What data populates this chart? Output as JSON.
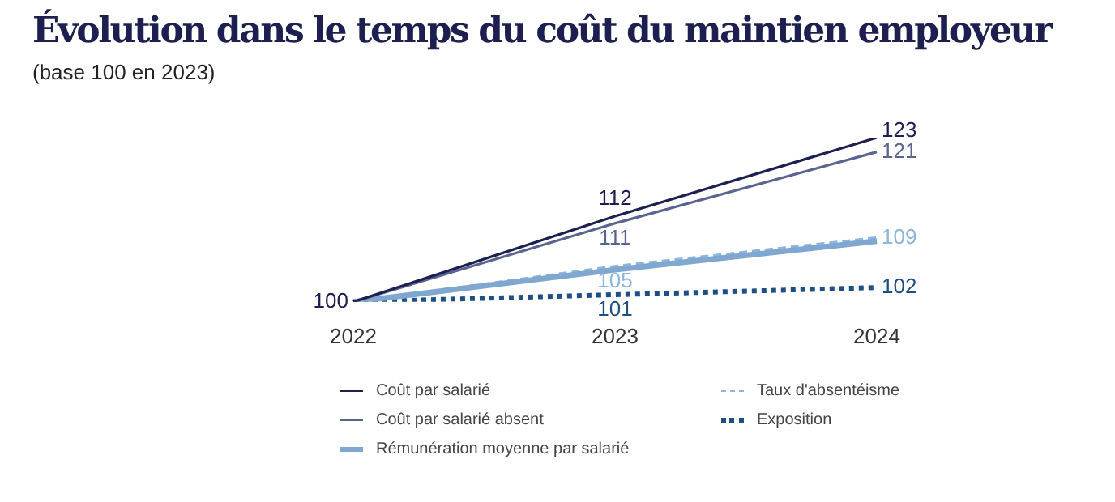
{
  "chart_data": {
    "type": "line",
    "title": "Évolution dans le temps du coût du maintien employeur",
    "subtitle": "(base 100 en 2023)",
    "categories": [
      "2022",
      "2023",
      "2024"
    ],
    "series": [
      {
        "name": "Coût par salarié",
        "color": "#1c1f4f",
        "values": [
          100,
          112,
          123
        ],
        "value_labels": [
          "100",
          "112",
          "123"
        ]
      },
      {
        "name": "Coût par salarié absent",
        "color": "#5a6490",
        "values": [
          100,
          111,
          121
        ],
        "value_labels": [
          null,
          "111",
          "121"
        ]
      },
      {
        "name": "Rémunération moyenne par salarié",
        "color": "#7fa7cf",
        "values": [
          100,
          104.5,
          108.5
        ]
      },
      {
        "name": "Taux d'absentéisme",
        "color": "#8db6dc",
        "values": [
          100,
          105,
          109
        ],
        "value_labels": [
          null,
          "105",
          "109"
        ],
        "line_style": "dashed"
      },
      {
        "name": "Exposition",
        "color": "#1d4f86",
        "values": [
          100,
          101,
          102
        ],
        "value_labels": [
          null,
          "101",
          "102"
        ],
        "line_style": "dotted"
      }
    ],
    "tick_labels": "x",
    "grid": false,
    "marker": "none",
    "legend": "bottom"
  }
}
